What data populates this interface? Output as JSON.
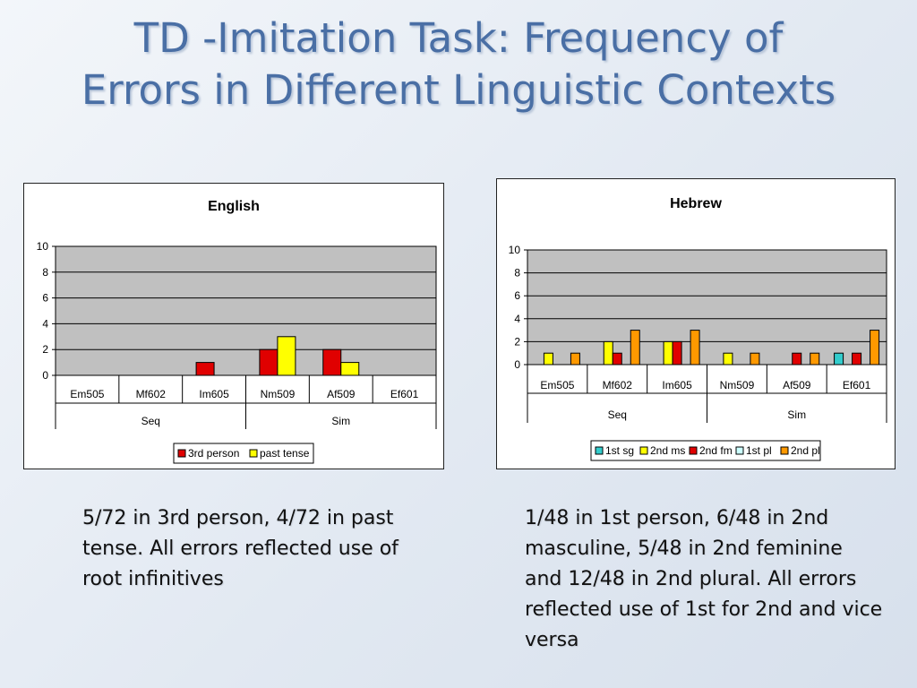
{
  "slide": {
    "title_line1": "TD -Imitation Task: Frequency of",
    "title_line2": "Errors in Different Linguistic Contexts",
    "caption_english": "5/72 in 3rd person, 4/72 in past tense. All errors reflected use of root infinitives",
    "caption_hebrew": "1/48 in 1st person, 6/48 in 2nd masculine, 5/48 in 2nd feminine and 12/48 in 2nd plural. All errors reflected use of 1st for 2nd and vice versa"
  },
  "chart_data": [
    {
      "id": "english",
      "type": "bar",
      "title": "English",
      "categories": [
        "Em505",
        "Mf602",
        "Im605",
        "Nm509",
        "Af509",
        "Ef601"
      ],
      "groups": [
        {
          "label": "Seq",
          "categories": [
            "Em505",
            "Mf602",
            "Im605"
          ]
        },
        {
          "label": "Sim",
          "categories": [
            "Nm509",
            "Af509",
            "Ef601"
          ]
        }
      ],
      "series": [
        {
          "name": "3rd person",
          "color": "#e00000",
          "values": [
            0,
            0,
            1,
            2,
            2,
            0
          ]
        },
        {
          "name": "past tense",
          "color": "#ffff00",
          "values": [
            0,
            0,
            0,
            3,
            1,
            0
          ]
        }
      ],
      "ylim": [
        0,
        10
      ],
      "yticks": [
        0,
        2,
        4,
        6,
        8,
        10
      ],
      "plot_background": "#c0c0c0",
      "grid": true,
      "legend_position": "bottom"
    },
    {
      "id": "hebrew",
      "type": "bar",
      "title": "Hebrew",
      "categories": [
        "Em505",
        "Mf602",
        "Im605",
        "Nm509",
        "Af509",
        "Ef601"
      ],
      "groups": [
        {
          "label": "Seq",
          "categories": [
            "Em505",
            "Mf602",
            "Im605"
          ]
        },
        {
          "label": "Sim",
          "categories": [
            "Nm509",
            "Af509",
            "Ef601"
          ]
        }
      ],
      "series": [
        {
          "name": "1st sg",
          "color": "#33cccc",
          "values": [
            0,
            0,
            0,
            0,
            0,
            1
          ]
        },
        {
          "name": "2nd ms",
          "color": "#ffff00",
          "values": [
            1,
            2,
            2,
            1,
            0,
            0
          ]
        },
        {
          "name": "2nd fm",
          "color": "#e00000",
          "values": [
            0,
            1,
            2,
            0,
            1,
            1
          ]
        },
        {
          "name": "1st pl",
          "color": "#ccffff",
          "values": [
            0,
            0,
            0,
            0,
            0,
            0
          ]
        },
        {
          "name": "2nd pl",
          "color": "#ff9900",
          "values": [
            1,
            3,
            3,
            1,
            1,
            3
          ]
        }
      ],
      "ylim": [
        0,
        10
      ],
      "yticks": [
        0,
        2,
        4,
        6,
        8,
        10
      ],
      "plot_background": "#c0c0c0",
      "grid": true,
      "legend_position": "bottom"
    }
  ]
}
